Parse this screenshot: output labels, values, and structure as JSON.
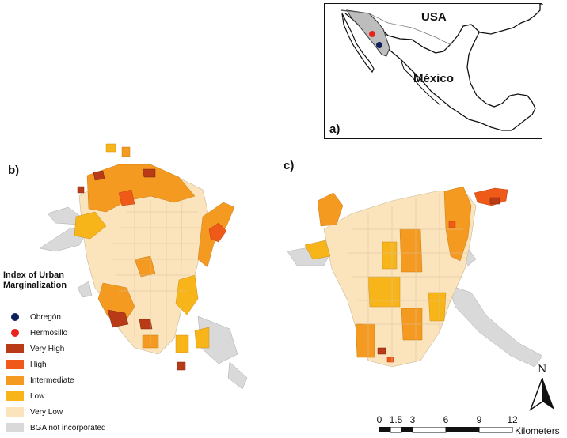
{
  "panels": {
    "a": "a)",
    "b": "b)",
    "c": "c)"
  },
  "inset": {
    "usa": "USA",
    "mexico": "México"
  },
  "legend": {
    "title": "Index of Urban Marginalization",
    "items": [
      {
        "label": "Obregón",
        "kind": "dot",
        "color": "#0d1f5c"
      },
      {
        "label": "Hermosillo",
        "kind": "dot",
        "color": "#e8231f"
      },
      {
        "label": "Very High",
        "kind": "swatch",
        "color": "#b83a16"
      },
      {
        "label": "High",
        "kind": "swatch",
        "color": "#f05a18"
      },
      {
        "label": "Intermediate",
        "kind": "swatch",
        "color": "#f59a20"
      },
      {
        "label": "Low",
        "kind": "swatch",
        "color": "#f8b51a"
      },
      {
        "label": "Very Low",
        "kind": "swatch",
        "color": "#fbe3bb"
      },
      {
        "label": "BGA not incorporated",
        "kind": "swatch",
        "color": "#d9d9d9"
      }
    ]
  },
  "scale_bar": {
    "ticks": [
      "0",
      "1.5",
      "3",
      "6",
      "9",
      "12"
    ],
    "units": "Kilometers"
  },
  "north_arrow": {
    "letter": "N",
    "icon": "north-arrow-icon"
  },
  "colors": {
    "very_high": "#b83a16",
    "high": "#f05a18",
    "intermediate": "#f59a20",
    "low": "#f8b51a",
    "very_low": "#fbe3bb",
    "not_incorporated": "#d9d9d9",
    "sonora_fill": "#bdbdbd"
  }
}
